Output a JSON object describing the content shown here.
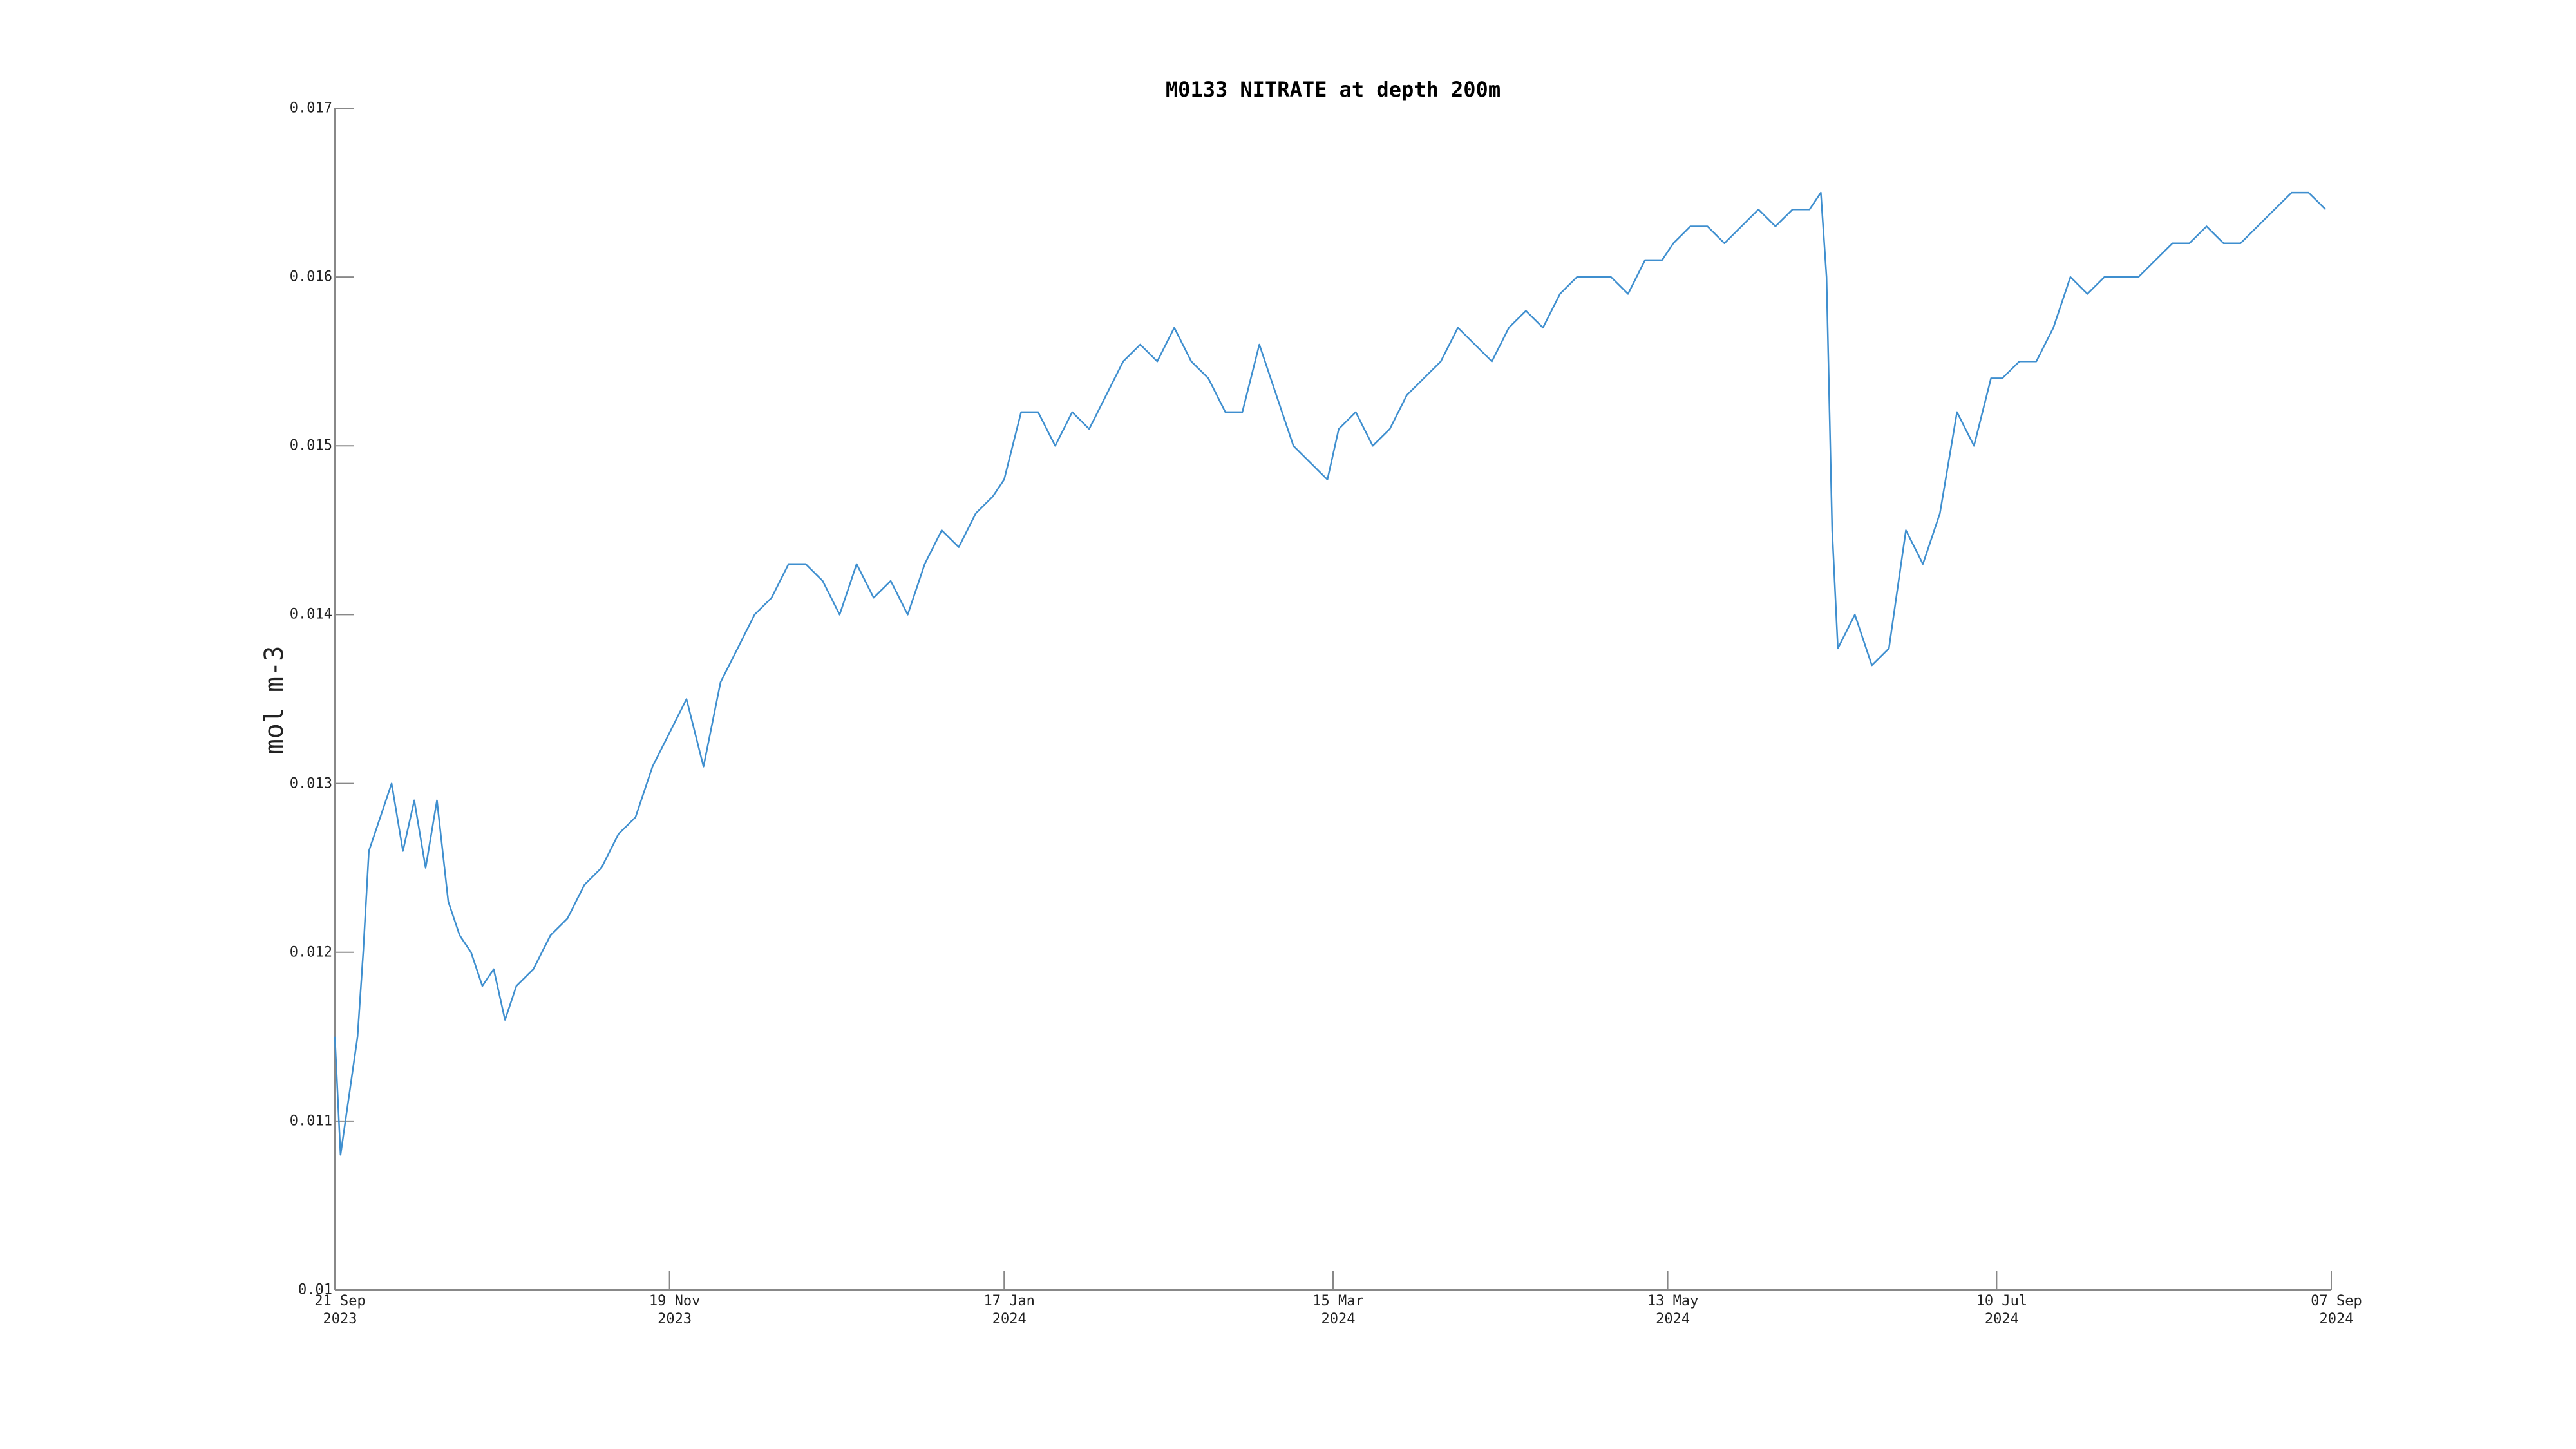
{
  "chart_data": {
    "type": "line",
    "title": "M0133 NITRATE at depth 200m",
    "ylabel": "mol m-3",
    "color": "#3f8fcf",
    "x": [
      "2023-09-21",
      "2023-09-22",
      "2023-09-25",
      "2023-09-26",
      "2023-09-27",
      "2023-09-29",
      "2023-10-01",
      "2023-10-03",
      "2023-10-05",
      "2023-10-07",
      "2023-10-09",
      "2023-10-11",
      "2023-10-13",
      "2023-10-15",
      "2023-10-17",
      "2023-10-19",
      "2023-10-21",
      "2023-10-23",
      "2023-10-26",
      "2023-10-29",
      "2023-11-01",
      "2023-11-04",
      "2023-11-07",
      "2023-11-10",
      "2023-11-13",
      "2023-11-16",
      "2023-11-19",
      "2023-11-22",
      "2023-11-25",
      "2023-11-28",
      "2023-12-01",
      "2023-12-04",
      "2023-12-07",
      "2023-12-10",
      "2023-12-13",
      "2023-12-16",
      "2023-12-19",
      "2023-12-22",
      "2023-12-25",
      "2023-12-28",
      "2023-12-31",
      "2024-01-03",
      "2024-01-06",
      "2024-01-09",
      "2024-01-12",
      "2024-01-15",
      "2024-01-17",
      "2024-01-20",
      "2024-01-23",
      "2024-01-26",
      "2024-01-29",
      "2024-02-01",
      "2024-02-04",
      "2024-02-07",
      "2024-02-10",
      "2024-02-13",
      "2024-02-16",
      "2024-02-19",
      "2024-02-22",
      "2024-02-25",
      "2024-02-28",
      "2024-03-02",
      "2024-03-05",
      "2024-03-08",
      "2024-03-11",
      "2024-03-14",
      "2024-03-16",
      "2024-03-19",
      "2024-03-22",
      "2024-03-25",
      "2024-03-28",
      "2024-03-31",
      "2024-04-03",
      "2024-04-06",
      "2024-04-09",
      "2024-04-12",
      "2024-04-15",
      "2024-04-18",
      "2024-04-21",
      "2024-04-24",
      "2024-04-27",
      "2024-04-30",
      "2024-05-03",
      "2024-05-06",
      "2024-05-09",
      "2024-05-12",
      "2024-05-14",
      "2024-05-17",
      "2024-05-20",
      "2024-05-23",
      "2024-05-26",
      "2024-05-29",
      "2024-06-01",
      "2024-06-04",
      "2024-06-07",
      "2024-06-09",
      "2024-06-10",
      "2024-06-11",
      "2024-06-12",
      "2024-06-15",
      "2024-06-18",
      "2024-06-21",
      "2024-06-24",
      "2024-06-27",
      "2024-06-30",
      "2024-07-03",
      "2024-07-06",
      "2024-07-09",
      "2024-07-11",
      "2024-07-14",
      "2024-07-17",
      "2024-07-20",
      "2024-07-23",
      "2024-07-26",
      "2024-07-29",
      "2024-08-01",
      "2024-08-04",
      "2024-08-07",
      "2024-08-10",
      "2024-08-13",
      "2024-08-16",
      "2024-08-19",
      "2024-08-22",
      "2024-08-25",
      "2024-08-28",
      "2024-08-31",
      "2024-09-03",
      "2024-09-06"
    ],
    "values": [
      0.0115,
      0.0108,
      0.0115,
      0.012,
      0.0126,
      0.0128,
      0.013,
      0.0126,
      0.0129,
      0.0125,
      0.0129,
      0.0123,
      0.0121,
      0.012,
      0.0118,
      0.0119,
      0.0116,
      0.0118,
      0.0119,
      0.0121,
      0.0122,
      0.0124,
      0.0125,
      0.0127,
      0.0128,
      0.0131,
      0.0133,
      0.0135,
      0.0131,
      0.0136,
      0.0138,
      0.014,
      0.0141,
      0.0143,
      0.0143,
      0.0142,
      0.014,
      0.0143,
      0.0141,
      0.0142,
      0.014,
      0.0143,
      0.0145,
      0.0144,
      0.0146,
      0.0147,
      0.0148,
      0.0152,
      0.0152,
      0.015,
      0.0152,
      0.0151,
      0.0153,
      0.0155,
      0.0156,
      0.0155,
      0.0157,
      0.0155,
      0.0154,
      0.0152,
      0.0152,
      0.0156,
      0.0153,
      0.015,
      0.0149,
      0.0148,
      0.0151,
      0.0152,
      0.015,
      0.0151,
      0.0153,
      0.0154,
      0.0155,
      0.0157,
      0.0156,
      0.0155,
      0.0157,
      0.0158,
      0.0157,
      0.0159,
      0.016,
      0.016,
      0.016,
      0.0159,
      0.0161,
      0.0161,
      0.0162,
      0.0163,
      0.0163,
      0.0162,
      0.0163,
      0.0164,
      0.0163,
      0.0164,
      0.0164,
      0.0165,
      0.016,
      0.0145,
      0.0138,
      0.014,
      0.0137,
      0.0138,
      0.0145,
      0.0143,
      0.0146,
      0.0152,
      0.015,
      0.0154,
      0.0154,
      0.0155,
      0.0155,
      0.0157,
      0.016,
      0.0159,
      0.016,
      0.016,
      0.016,
      0.0161,
      0.0162,
      0.0162,
      0.0163,
      0.0162,
      0.0162,
      0.0163,
      0.0164,
      0.0165,
      0.0165,
      0.0164
    ],
    "xlim": [
      "2023-09-21",
      "2024-09-07"
    ],
    "xticks": [
      {
        "value": "2023-09-21",
        "label": "21 Sep\n2023"
      },
      {
        "value": "2023-11-19",
        "label": "19 Nov\n2023"
      },
      {
        "value": "2024-01-17",
        "label": "17 Jan\n2024"
      },
      {
        "value": "2024-03-15",
        "label": "15 Mar\n2024"
      },
      {
        "value": "2024-05-13",
        "label": "13 May\n2024"
      },
      {
        "value": "2024-07-10",
        "label": "10 Jul\n2024"
      },
      {
        "value": "2024-09-07",
        "label": "07 Sep\n2024"
      }
    ],
    "ylim": [
      0.01,
      0.017
    ],
    "yticks": [
      0.01,
      0.011,
      0.012,
      0.013,
      0.014,
      0.015,
      0.016,
      0.017
    ],
    "grid": false
  }
}
